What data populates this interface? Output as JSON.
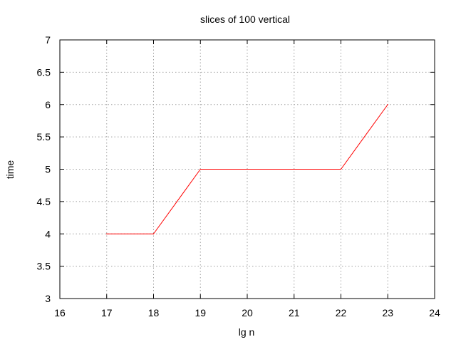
{
  "chart_data": {
    "type": "line",
    "title": "slices of 100 vertical",
    "xlabel": "lg n",
    "ylabel": "time",
    "xlim": [
      16,
      24
    ],
    "ylim": [
      3,
      7
    ],
    "x_ticks": [
      "16",
      "17",
      "18",
      "19",
      "20",
      "21",
      "22",
      "23",
      "24"
    ],
    "y_ticks": [
      "3",
      "3.5",
      "4",
      "4.5",
      "5",
      "5.5",
      "6",
      "6.5",
      "7"
    ],
    "grid": true,
    "series": [
      {
        "color": "#ff0000",
        "x": [
          17,
          18,
          19,
          20,
          21,
          22,
          23
        ],
        "y": [
          4,
          4,
          5,
          5,
          5,
          5,
          6
        ]
      }
    ]
  }
}
